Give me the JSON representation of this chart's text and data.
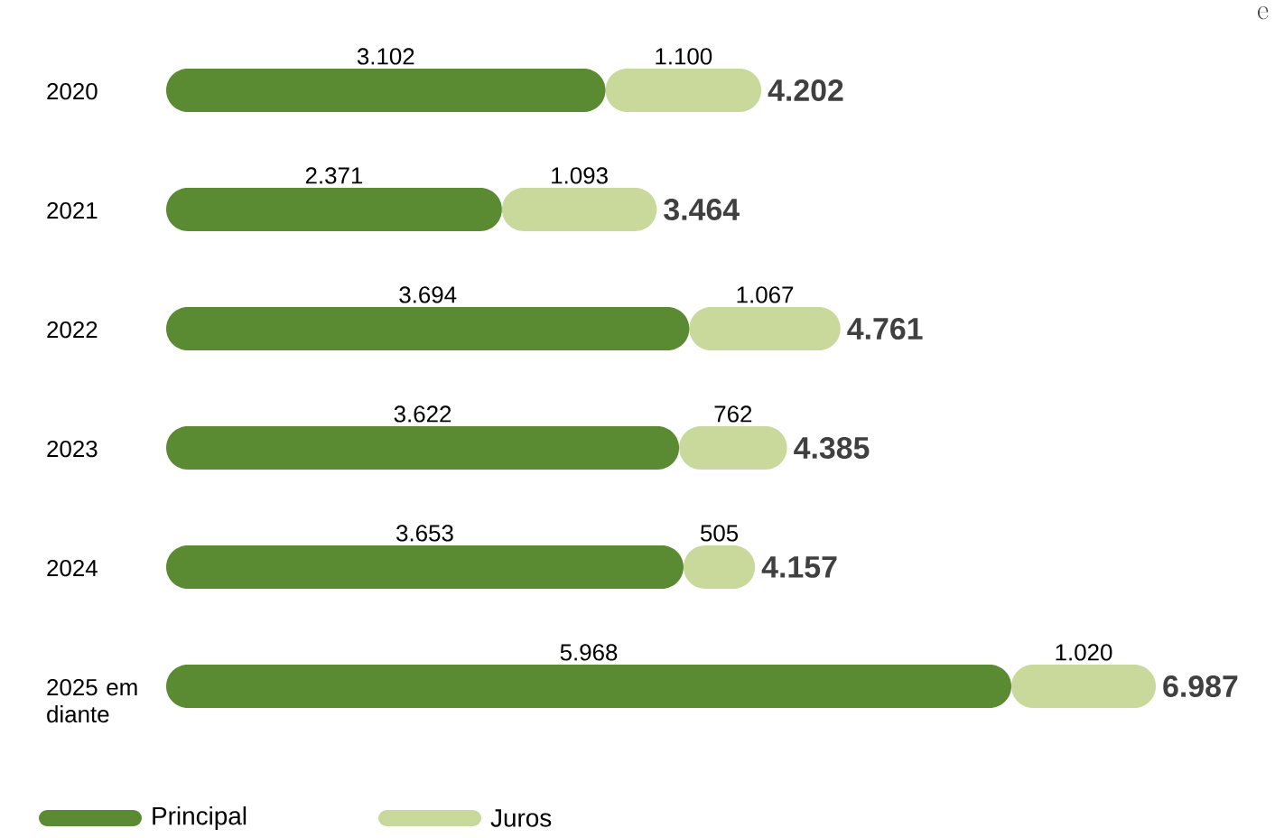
{
  "chart_data": {
    "type": "bar",
    "orientation": "horizontal",
    "stacked": true,
    "tick_labels": "y",
    "legend": "bottom left",
    "categories": [
      "2020",
      "2021",
      "2022",
      "2023",
      "2024",
      "2025 em diante"
    ],
    "series": [
      {
        "name": "Principal",
        "color": "#5a8a32",
        "values": [
          3102,
          2371,
          3694,
          3622,
          3653,
          5968
        ],
        "value_labels": [
          "3.102",
          "2.371",
          "3.694",
          "3.622",
          "3.653",
          "5.968"
        ]
      },
      {
        "name": "Juros",
        "color": "#c9d99c",
        "values": [
          1100,
          1093,
          1067,
          762,
          505,
          1020
        ],
        "value_labels": [
          "1.100",
          "1.093",
          "1.067",
          "762",
          "505",
          "1.020"
        ]
      }
    ],
    "totals": [
      "4.202",
      "3.464",
      "4.761",
      "4.385",
      "4.157",
      "6.987"
    ],
    "annotations": [
      "e"
    ]
  }
}
